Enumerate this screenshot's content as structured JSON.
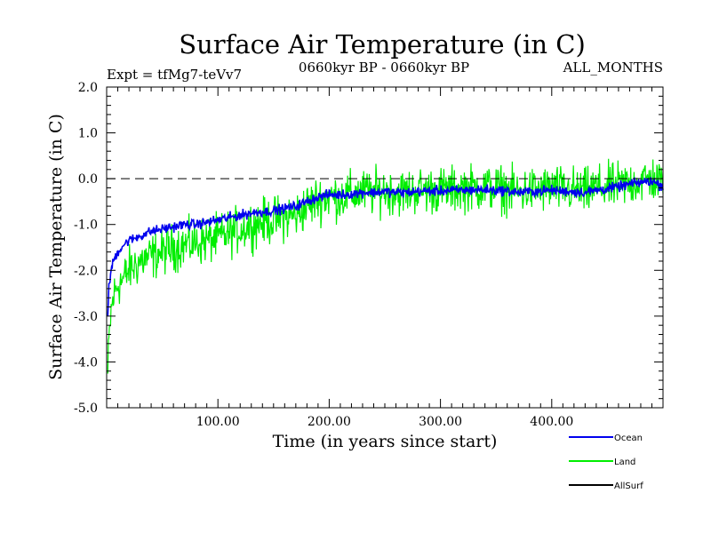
{
  "chart_data": {
    "type": "line",
    "title": "Surface Air Temperature (in C)",
    "subtitle_left": "Expt = tfMg7-teVv7",
    "subtitle_center": "0660kyr BP - 0660kyr BP",
    "subtitle_right": "ALL_MONTHS",
    "xlabel": "Time (in years since start)",
    "ylabel": "Surface Air Temperature (in C)",
    "xlim": [
      0,
      500
    ],
    "ylim": [
      -5.0,
      2.0
    ],
    "x_ticks": [
      100,
      200,
      300,
      400
    ],
    "x_tick_labels": [
      "100.00",
      "200.00",
      "300.00",
      "400.00"
    ],
    "y_ticks": [
      -5.0,
      -4.0,
      -3.0,
      -2.0,
      -1.0,
      0.0,
      1.0,
      2.0
    ],
    "y_tick_labels": [
      "-5.0",
      "-4.0",
      "-3.0",
      "-2.0",
      "-1.0",
      "0.0",
      "1.0",
      "2.0"
    ],
    "reference_line": {
      "y": 0.0,
      "style": "dashed"
    },
    "legend_placement": "bottom-right",
    "series": [
      {
        "name": "Land",
        "color": "#00ee00",
        "x": [
          1,
          2,
          4,
          6,
          10,
          15,
          20,
          25,
          30,
          40,
          50,
          60,
          70,
          80,
          90,
          100,
          110,
          120,
          130,
          140,
          150,
          160,
          170,
          180,
          190,
          200,
          210,
          220,
          230,
          240,
          250,
          260,
          270,
          280,
          290,
          300,
          310,
          320,
          330,
          340,
          350,
          360,
          370,
          380,
          390,
          400,
          410,
          420,
          430,
          440,
          450,
          460,
          470,
          480,
          490,
          498
        ],
        "y": [
          -4.3,
          -3.6,
          -2.9,
          -2.6,
          -2.3,
          -2.2,
          -2.0,
          -1.9,
          -1.8,
          -1.7,
          -1.6,
          -1.5,
          -1.45,
          -1.4,
          -1.35,
          -1.3,
          -1.2,
          -1.1,
          -1.0,
          -0.95,
          -0.9,
          -0.85,
          -0.8,
          -0.6,
          -0.45,
          -0.4,
          -0.4,
          -0.35,
          -0.3,
          -0.3,
          -0.25,
          -0.3,
          -0.3,
          -0.25,
          -0.25,
          -0.25,
          -0.25,
          -0.2,
          -0.2,
          -0.2,
          -0.2,
          -0.25,
          -0.3,
          -0.25,
          -0.25,
          -0.2,
          -0.25,
          -0.25,
          -0.3,
          -0.2,
          -0.2,
          -0.15,
          -0.1,
          -0.05,
          0.0,
          -0.1
        ]
      },
      {
        "name": "Ocean",
        "color": "#0000ee",
        "x": [
          1,
          2,
          4,
          6,
          10,
          15,
          20,
          25,
          30,
          40,
          50,
          60,
          70,
          80,
          90,
          100,
          110,
          120,
          130,
          140,
          150,
          160,
          170,
          180,
          190,
          200,
          210,
          220,
          230,
          240,
          250,
          260,
          270,
          280,
          290,
          300,
          310,
          320,
          330,
          340,
          350,
          360,
          370,
          380,
          390,
          400,
          410,
          420,
          430,
          440,
          450,
          460,
          470,
          480,
          490,
          498
        ],
        "y": [
          -2.9,
          -2.4,
          -2.0,
          -1.8,
          -1.6,
          -1.45,
          -1.35,
          -1.3,
          -1.25,
          -1.15,
          -1.1,
          -1.05,
          -1.0,
          -1.0,
          -0.95,
          -0.9,
          -0.85,
          -0.8,
          -0.75,
          -0.72,
          -0.7,
          -0.65,
          -0.6,
          -0.5,
          -0.4,
          -0.35,
          -0.35,
          -0.33,
          -0.3,
          -0.3,
          -0.28,
          -0.3,
          -0.3,
          -0.28,
          -0.27,
          -0.27,
          -0.26,
          -0.25,
          -0.24,
          -0.24,
          -0.25,
          -0.27,
          -0.3,
          -0.28,
          -0.27,
          -0.25,
          -0.27,
          -0.28,
          -0.3,
          -0.25,
          -0.22,
          -0.18,
          -0.12,
          -0.08,
          -0.05,
          -0.15
        ]
      },
      {
        "name": "AllSurf",
        "color": "#000000",
        "x": [],
        "y": []
      }
    ]
  }
}
